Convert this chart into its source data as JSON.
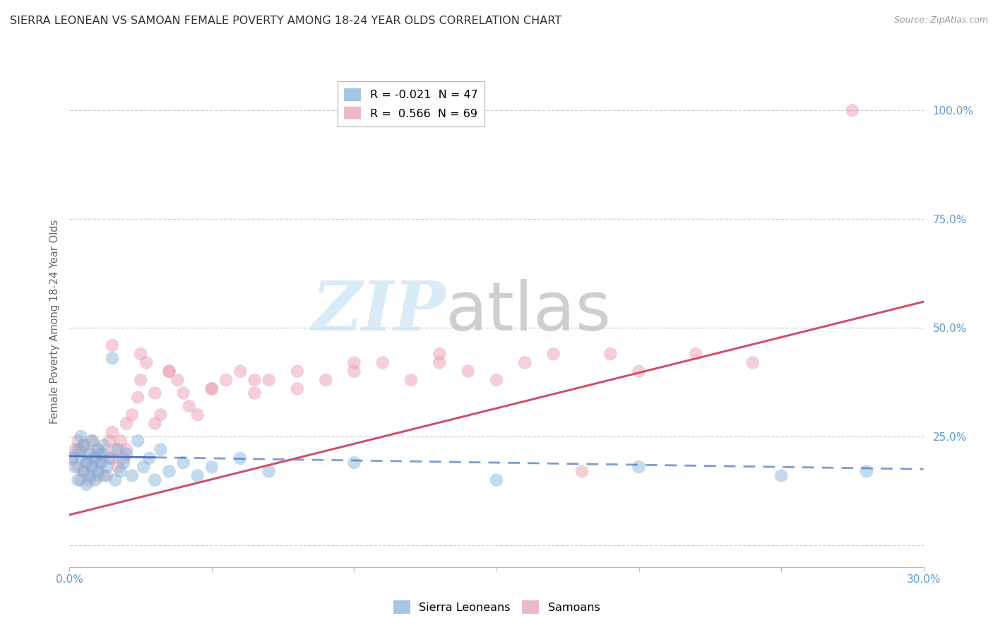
{
  "title": "SIERRA LEONEAN VS SAMOAN FEMALE POVERTY AMONG 18-24 YEAR OLDS CORRELATION CHART",
  "source": "Source: ZipAtlas.com",
  "ylabel": "Female Poverty Among 18-24 Year Olds",
  "xlim": [
    0.0,
    0.3
  ],
  "ylim": [
    -0.05,
    1.08
  ],
  "ytick_positions": [
    0.0,
    0.25,
    0.5,
    0.75,
    1.0
  ],
  "ytick_labels": [
    "",
    "25.0%",
    "50.0%",
    "75.0%",
    "100.0%"
  ],
  "xtick_positions": [
    0.0,
    0.05,
    0.1,
    0.15,
    0.2,
    0.25,
    0.3
  ],
  "xtick_labels": [
    "0.0%",
    "",
    "",
    "",
    "",
    "",
    "30.0%"
  ],
  "legend1": [
    {
      "label": "R = -0.021  N = 47",
      "color": "#8db8e0"
    },
    {
      "label": "R =  0.566  N = 69",
      "color": "#e8a8b8"
    }
  ],
  "legend2_labels": [
    "Sierra Leoneans",
    "Samoans"
  ],
  "legend2_colors": [
    "#8db8e0",
    "#e8a8b8"
  ],
  "sierra_color": "#7ab0d8",
  "samoan_color": "#e896aa",
  "sierra_line_color": "#4472c4",
  "samoan_line_color": "#d0506a",
  "background_color": "#ffffff",
  "grid_color": "#cccccc",
  "title_fontsize": 11.5,
  "tick_fontsize": 11,
  "source_fontsize": 9,
  "ylabel_fontsize": 10.5,
  "sierra_x": [
    0.001,
    0.002,
    0.003,
    0.003,
    0.004,
    0.004,
    0.005,
    0.005,
    0.006,
    0.006,
    0.007,
    0.007,
    0.008,
    0.008,
    0.009,
    0.009,
    0.01,
    0.01,
    0.011,
    0.011,
    0.012,
    0.012,
    0.013,
    0.014,
    0.015,
    0.016,
    0.017,
    0.018,
    0.019,
    0.02,
    0.022,
    0.024,
    0.026,
    0.028,
    0.03,
    0.032,
    0.035,
    0.04,
    0.045,
    0.05,
    0.06,
    0.07,
    0.1,
    0.15,
    0.2,
    0.25,
    0.28
  ],
  "sierra_y": [
    0.2,
    0.18,
    0.22,
    0.15,
    0.25,
    0.2,
    0.17,
    0.23,
    0.19,
    0.14,
    0.21,
    0.16,
    0.24,
    0.18,
    0.2,
    0.15,
    0.22,
    0.17,
    0.19,
    0.21,
    0.16,
    0.23,
    0.18,
    0.2,
    0.43,
    0.15,
    0.22,
    0.17,
    0.19,
    0.21,
    0.16,
    0.24,
    0.18,
    0.2,
    0.15,
    0.22,
    0.17,
    0.19,
    0.16,
    0.18,
    0.2,
    0.17,
    0.19,
    0.15,
    0.18,
    0.16,
    0.17
  ],
  "samoan_x": [
    0.001,
    0.002,
    0.003,
    0.003,
    0.004,
    0.004,
    0.005,
    0.005,
    0.006,
    0.007,
    0.007,
    0.008,
    0.008,
    0.009,
    0.01,
    0.01,
    0.011,
    0.012,
    0.013,
    0.014,
    0.015,
    0.015,
    0.016,
    0.017,
    0.018,
    0.019,
    0.02,
    0.02,
    0.022,
    0.024,
    0.025,
    0.027,
    0.03,
    0.03,
    0.032,
    0.035,
    0.038,
    0.04,
    0.042,
    0.045,
    0.05,
    0.055,
    0.06,
    0.065,
    0.07,
    0.08,
    0.09,
    0.1,
    0.11,
    0.12,
    0.13,
    0.14,
    0.15,
    0.16,
    0.17,
    0.18,
    0.19,
    0.2,
    0.22,
    0.24,
    0.015,
    0.025,
    0.035,
    0.05,
    0.065,
    0.08,
    0.1,
    0.13,
    0.275
  ],
  "samoan_y": [
    0.2,
    0.22,
    0.18,
    0.24,
    0.15,
    0.22,
    0.17,
    0.23,
    0.19,
    0.21,
    0.15,
    0.24,
    0.18,
    0.2,
    0.22,
    0.16,
    0.19,
    0.21,
    0.16,
    0.24,
    0.2,
    0.26,
    0.22,
    0.18,
    0.24,
    0.2,
    0.28,
    0.22,
    0.3,
    0.34,
    0.38,
    0.42,
    0.28,
    0.35,
    0.3,
    0.4,
    0.38,
    0.35,
    0.32,
    0.3,
    0.36,
    0.38,
    0.4,
    0.35,
    0.38,
    0.36,
    0.38,
    0.4,
    0.42,
    0.38,
    0.42,
    0.4,
    0.38,
    0.42,
    0.44,
    0.17,
    0.44,
    0.4,
    0.44,
    0.42,
    0.46,
    0.44,
    0.4,
    0.36,
    0.38,
    0.4,
    0.42,
    0.44,
    1.0
  ]
}
